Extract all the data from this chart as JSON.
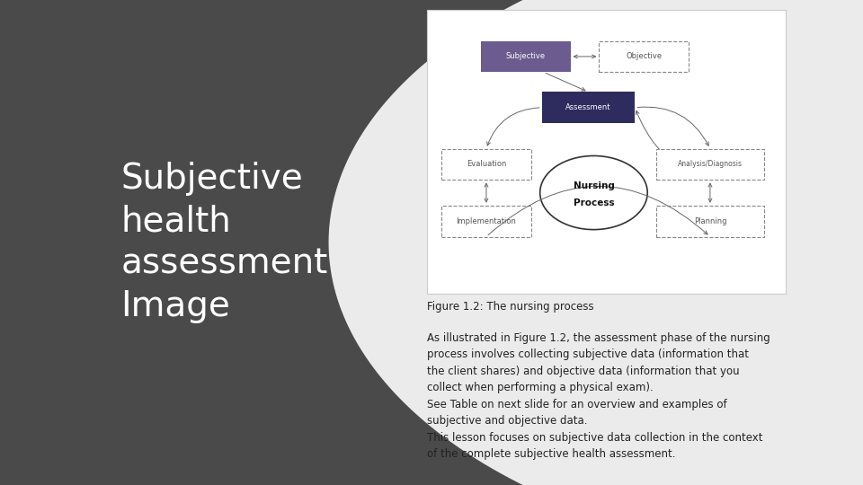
{
  "left_bg_color": "#4a4a4a",
  "right_bg_color": "#ebebeb",
  "title_text": "Subjective\nhealth\nassessment\nImage",
  "title_color": "#ffffff",
  "title_fontsize": 28,
  "figure_caption_title": "Figure 1.2: The nursing process",
  "figure_caption_body": "As illustrated in Figure 1.2, the assessment phase of the nursing\nprocess involves collecting subjective data (information that\nthe client shares) and objective data (information that you\ncollect when performing a physical exam).\nSee Table on next slide for an overview and examples of\nsubjective and objective data.\nThis lesson focuses on subjective data collection in the context\nof the complete subjective health assessment.",
  "caption_fontsize": 8.5,
  "subjective_box_color": "#6b5b8f",
  "assessment_box_color": "#2e2b5f",
  "dashed_box_color": "#888888",
  "arrow_color": "#666666",
  "diagram_bg": "#ffffff",
  "diagram_border": "#cccccc"
}
